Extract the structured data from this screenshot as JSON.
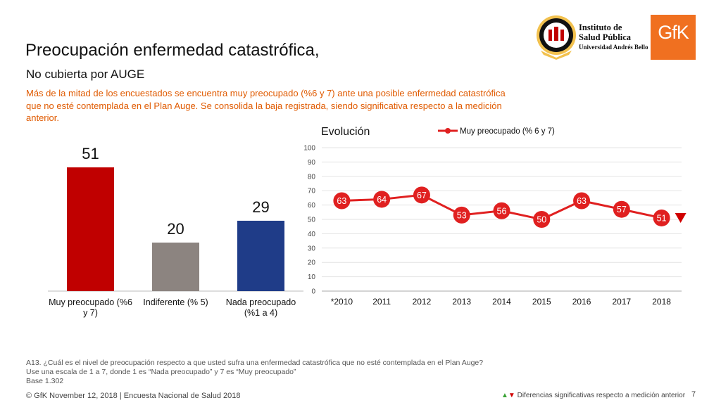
{
  "title": "Preocupación enfermedad catastrófica,",
  "subtitle": "No cubierta por AUGE",
  "intro": "Más de la mitad de los encuestados se encuentra muy preocupado (%6 y 7) ante una posible enfermedad catastrófica que no esté contemplada en el Plan Auge. Se consolida la baja registrada, siendo significativa respecto a la medición anterior.",
  "logos": {
    "isp_line1": "Instituto de",
    "isp_line2": "Salud Pública",
    "isp_line3": "Universidad Andrés Bello",
    "gfk": "GfK"
  },
  "chart_data": [
    {
      "type": "bar",
      "categories": [
        "Muy preocupado (%6 y 7)",
        "Indiferente (% 5)",
        "Nada preocupado (%1 a 4)"
      ],
      "category_lines": [
        [
          "Muy preocupado (%6",
          "y 7)"
        ],
        [
          "Indiferente (% 5)"
        ],
        [
          "Nada preocupado",
          "(%1 a 4)"
        ]
      ],
      "values": [
        51,
        20,
        29
      ],
      "colors": [
        "#c00000",
        "#8c8480",
        "#1f3c88"
      ]
    },
    {
      "type": "line",
      "title": "Evolución",
      "x": [
        "*2010",
        "2011",
        "2012",
        "2013",
        "2014",
        "2015",
        "2016",
        "2017",
        "2018"
      ],
      "series": [
        {
          "name": "Muy preocupado (% 6 y 7)",
          "values": [
            63,
            64,
            67,
            53,
            56,
            50,
            63,
            57,
            51
          ],
          "color": "#e02020"
        }
      ],
      "ylim": [
        0,
        100
      ],
      "yticks": [
        "0",
        "10",
        "20",
        "30",
        "40",
        "50",
        "60",
        "70",
        "80",
        "90",
        "100"
      ],
      "grid": true,
      "legend": "top",
      "significant_change": {
        "index": 8,
        "direction": "down",
        "color": "#d00000"
      }
    }
  ],
  "footnote": {
    "line1": "A13. ¿Cuál es el nivel de preocupación respecto a que usted sufra una enfermedad catastrófica que no esté contemplada en el Plan Auge?",
    "line2": "Use una escala de 1 a 7, donde 1 es “Nada preocupado” y 7 es “Muy preocupado”",
    "line3": "Base 1.302"
  },
  "footer": {
    "left": "© GfK November 12, 2018 | Encuesta Nacional de Salud 2018",
    "right_up": "▲",
    "right_down": "▼",
    "right": " Diferencias significativas respecto a medición anterior",
    "page": "7"
  }
}
